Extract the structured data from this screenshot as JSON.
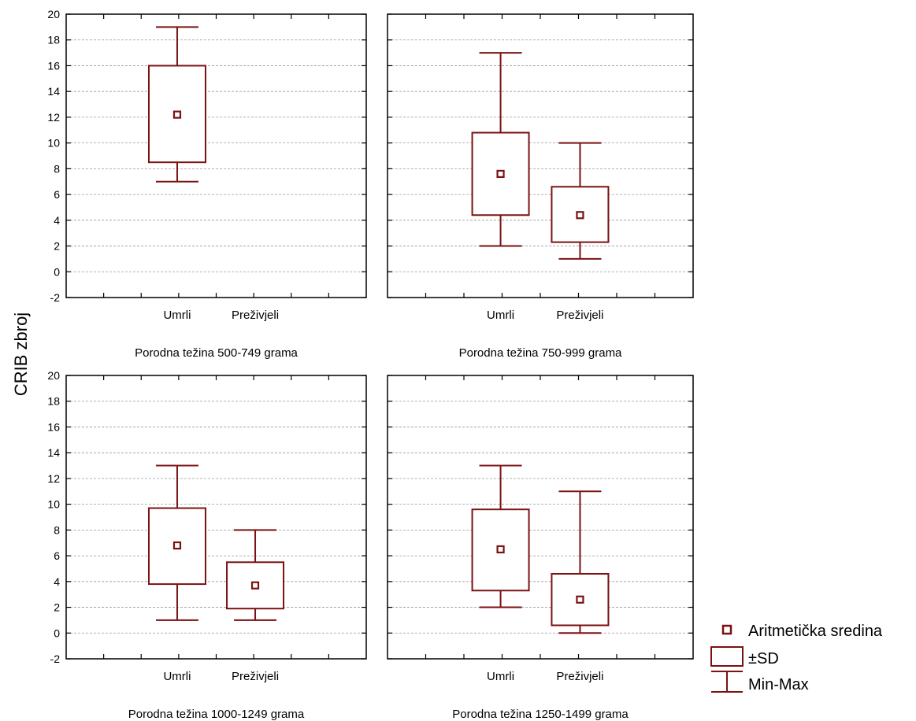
{
  "colors": {
    "accent": "#7b1113",
    "grid": "#9a9a9a",
    "axis": "#000000"
  },
  "chart_data": {
    "type": "box",
    "ylabel": "CRIB zbroj",
    "ylim": [
      -2,
      20
    ],
    "yticks": [
      -2,
      0,
      2,
      4,
      6,
      8,
      10,
      12,
      14,
      16,
      18,
      20
    ],
    "grid": true,
    "categories": [
      "Umrli",
      "Preživjeli"
    ],
    "legend": {
      "placement": "bottom-right",
      "items": [
        {
          "key": "mean",
          "label": "Aritmetička sredina"
        },
        {
          "key": "sd",
          "label": "±SD"
        },
        {
          "key": "minmax",
          "label": "Min-Max"
        }
      ]
    },
    "panels": [
      {
        "title": "Porodna težina 500-749 grama",
        "groups": [
          {
            "category": "Umrli",
            "mean": 12.2,
            "sd_low": 8.5,
            "sd_high": 16.0,
            "min": 7,
            "max": 19
          },
          {
            "category": "Preživjeli",
            "mean": null,
            "sd_low": null,
            "sd_high": null,
            "min": null,
            "max": null
          }
        ]
      },
      {
        "title": "Porodna težina 750-999 grama",
        "groups": [
          {
            "category": "Umrli",
            "mean": 7.6,
            "sd_low": 4.4,
            "sd_high": 10.8,
            "min": 2,
            "max": 17
          },
          {
            "category": "Preživjeli",
            "mean": 4.4,
            "sd_low": 2.3,
            "sd_high": 6.6,
            "min": 1,
            "max": 10
          }
        ]
      },
      {
        "title": "Porodna težina 1000-1249 grama",
        "groups": [
          {
            "category": "Umrli",
            "mean": 6.8,
            "sd_low": 3.8,
            "sd_high": 9.7,
            "min": 1,
            "max": 13
          },
          {
            "category": "Preživjeli",
            "mean": 3.7,
            "sd_low": 1.9,
            "sd_high": 5.5,
            "min": 1,
            "max": 8
          }
        ]
      },
      {
        "title": "Porodna težina 1250-1499 grama",
        "groups": [
          {
            "category": "Umrli",
            "mean": 6.5,
            "sd_low": 3.3,
            "sd_high": 9.6,
            "min": 2,
            "max": 13
          },
          {
            "category": "Preživjeli",
            "mean": 2.6,
            "sd_low": 0.6,
            "sd_high": 4.6,
            "min": 0,
            "max": 11
          }
        ]
      }
    ]
  }
}
